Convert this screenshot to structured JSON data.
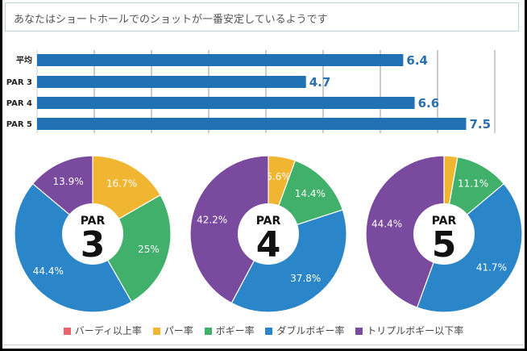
{
  "message": "あなたはショートホールでのショットが一番安定しているようです",
  "colors": {
    "bar": "#2072b4",
    "bar_label": "#2a6fb0",
    "birdie": "#e8666b",
    "par": "#f1b631",
    "bogey": "#41b06a",
    "double_bogey": "#2a86c8",
    "triple_bogey": "#7a4a9e"
  },
  "chart_data": [
    {
      "type": "bar",
      "orientation": "horizontal",
      "categories": [
        "平均",
        "PAR 3",
        "PAR 4",
        "PAR 5"
      ],
      "values": [
        6.4,
        4.7,
        6.6,
        7.5
      ],
      "value_labels": [
        "6.4",
        "4.7",
        "6.6",
        "7.5"
      ],
      "xlim": [
        0,
        8
      ],
      "grid": true,
      "title": "",
      "xlabel": "",
      "ylabel": ""
    },
    {
      "type": "pie",
      "donut": true,
      "center_label_top": "PAR",
      "center_label_big": "3",
      "categories": [
        "バーディ以上率",
        "パー率",
        "ボギー率",
        "ダブルボギー率",
        "トリプルボギー以下率"
      ],
      "values": [
        0,
        16.7,
        25,
        44.4,
        13.9
      ],
      "labels": [
        "",
        "16.7%",
        "25%",
        "44.4%",
        "13.9%"
      ]
    },
    {
      "type": "pie",
      "donut": true,
      "center_label_top": "PAR",
      "center_label_big": "4",
      "categories": [
        "バーディ以上率",
        "パー率",
        "ボギー率",
        "ダブルボギー率",
        "トリプルボギー以下率"
      ],
      "values": [
        0,
        5.6,
        14.4,
        37.8,
        42.2
      ],
      "labels": [
        "",
        "5.6%",
        "14.4%",
        "37.8%",
        "42.2%"
      ]
    },
    {
      "type": "pie",
      "donut": true,
      "center_label_top": "PAR",
      "center_label_big": "5",
      "categories": [
        "バーディ以上率",
        "パー率",
        "ボギー率",
        "ダブルボギー率",
        "トリプルボギー以下率"
      ],
      "values": [
        0,
        2.8,
        11.1,
        41.7,
        44.4
      ],
      "labels": [
        "",
        "",
        "11.1%",
        "41.7%",
        "44.4%"
      ]
    }
  ],
  "legend": [
    {
      "label": "バーディ以上率",
      "color_key": "birdie"
    },
    {
      "label": "パー率",
      "color_key": "par"
    },
    {
      "label": "ボギー率",
      "color_key": "bogey"
    },
    {
      "label": "ダブルボギー率",
      "color_key": "double_bogey"
    },
    {
      "label": "トリプルボギー以下率",
      "color_key": "triple_bogey"
    }
  ]
}
